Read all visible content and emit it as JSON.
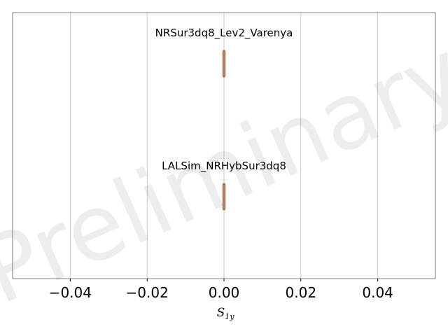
{
  "watermark": "Preliminary",
  "colors": {
    "grid": "#cccccc",
    "frame": "#808080",
    "violin_fill": "#c9a48a",
    "violin_edge": "#8a5a3c",
    "watermark": "#000000"
  },
  "chart_data": {
    "type": "violin",
    "title": "",
    "xlabel": "S",
    "xlabel_sub": "1y",
    "ylabel": "",
    "xlim": [
      -0.055,
      0.055
    ],
    "xticks": [
      -0.04,
      -0.02,
      0.0,
      0.02,
      0.04
    ],
    "xtick_labels": [
      "−0.04",
      "−0.02",
      "0.00",
      "0.02",
      "0.04"
    ],
    "grid": "x-only",
    "series": [
      {
        "name": "NRSur3dq8_Lev2_Varenya",
        "median": 0.0,
        "range": [
          -0.0003,
          0.0003
        ]
      },
      {
        "name": "LALSim_NRHybSur3dq8",
        "median": 0.0,
        "range": [
          -0.0003,
          0.0003
        ]
      }
    ]
  }
}
